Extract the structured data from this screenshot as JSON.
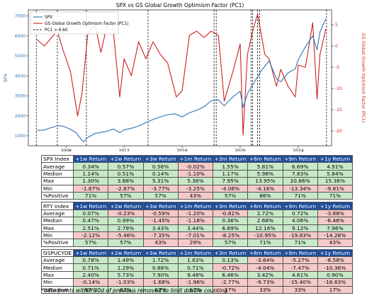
{
  "chart_data": {
    "type": "line",
    "title": "SPX vs GS Global Growth Optimism Factor (PC1)",
    "xlabel": "",
    "ylabel_left": "SPX",
    "ylabel_right": "GS Global Growth Optimism Factor (PC1)",
    "x_ticks": [
      "2008",
      "2012",
      "2016",
      "2020",
      "2024"
    ],
    "y_left_ticks": [
      1000,
      2000,
      3000,
      4000,
      5000,
      6000,
      7000
    ],
    "y_left_range": [
      500,
      7300
    ],
    "y_right_ticks": [
      -20,
      -15,
      -10,
      -5,
      0,
      5
    ],
    "y_right_range": [
      -23.5,
      8.5
    ],
    "x_range": [
      2005.4,
      2026.3
    ],
    "legend_position": "top-left",
    "legend": [
      "SPX",
      "GS Global Growth Optimism Factor (PC1)",
      "PC1 > 6.60"
    ],
    "series": [
      {
        "name": "SPX",
        "axis": "left",
        "color": "#2f74b5",
        "x": [
          2006.0,
          2006.5,
          2007.0,
          2007.5,
          2007.8,
          2008.3,
          2008.7,
          2009.0,
          2009.2,
          2009.5,
          2010.0,
          2010.4,
          2010.8,
          2011.3,
          2011.7,
          2012.0,
          2012.5,
          2013.0,
          2013.5,
          2014.0,
          2014.5,
          2015.0,
          2015.5,
          2016.0,
          2016.5,
          2017.0,
          2017.5,
          2018.0,
          2018.5,
          2018.9,
          2019.5,
          2020.0,
          2020.2,
          2020.5,
          2020.9,
          2021.5,
          2022.0,
          2022.5,
          2022.8,
          2023.3,
          2023.8,
          2024.0,
          2024.5,
          2025.0,
          2025.3,
          2025.5,
          2025.9
        ],
        "y": [
          1270,
          1290,
          1420,
          1510,
          1480,
          1330,
          1150,
          850,
          700,
          920,
          1120,
          1170,
          1230,
          1340,
          1160,
          1300,
          1380,
          1490,
          1660,
          1820,
          1950,
          2060,
          2100,
          1950,
          2150,
          2280,
          2450,
          2750,
          2800,
          2500,
          2950,
          3230,
          2420,
          3100,
          3600,
          4300,
          4750,
          3850,
          3700,
          4150,
          4350,
          4800,
          5450,
          6000,
          5300,
          6200,
          6850
        ]
      },
      {
        "name": "GS Global Growth Optimism Factor (PC1)",
        "axis": "right",
        "color": "#cc2020",
        "x": [
          2006.0,
          2006.5,
          2007.0,
          2007.4,
          2007.8,
          2008.3,
          2008.8,
          2009.1,
          2009.5,
          2010.0,
          2010.4,
          2010.8,
          2011.2,
          2011.7,
          2012.0,
          2012.5,
          2013.0,
          2013.5,
          2014.0,
          2014.5,
          2015.0,
          2015.6,
          2016.0,
          2016.5,
          2017.0,
          2017.5,
          2018.0,
          2018.5,
          2018.9,
          2019.5,
          2020.0,
          2020.2,
          2020.5,
          2020.9,
          2021.2,
          2021.7,
          2022.0,
          2022.5,
          2022.8,
          2023.3,
          2023.8,
          2024.0,
          2024.5,
          2025.0,
          2025.3,
          2025.5,
          2025.9
        ],
        "y": [
          1.5,
          0.0,
          2.0,
          3.5,
          -1.0,
          -6.0,
          -16.5,
          -11.0,
          3.0,
          5.0,
          -1.5,
          4.5,
          5.5,
          -12.0,
          -3.0,
          -7.0,
          1.0,
          -3.0,
          1.0,
          -2.0,
          -4.0,
          -12.0,
          -10.5,
          2.5,
          3.5,
          2.0,
          3.5,
          2.5,
          -13.0,
          -6.0,
          0.5,
          -21.0,
          -2.0,
          4.0,
          7.5,
          -2.0,
          -3.0,
          -9.5,
          -5.5,
          -9.5,
          -12.0,
          -4.5,
          -5.0,
          5.5,
          -12.5,
          -2.0,
          4.0
        ]
      },
      {
        "name": "PC1 > 6.60",
        "type": "vlines",
        "style": "dashed",
        "color": "#000000",
        "x": [
          2005.95,
          2007.4,
          2009.4,
          2013.65,
          2018.2,
          2018.35,
          2020.75,
          2020.85,
          2021.2,
          2021.35,
          2025.95
        ]
      }
    ]
  },
  "tables": [
    {
      "index_label": "SPX Index",
      "columns": [
        "+1w Return",
        "+2w Return",
        "+3w Return",
        "+1m Return",
        "+3m Return",
        "+6m Return",
        "+9m Return",
        "+1y Return"
      ],
      "rows": [
        {
          "label": "Average",
          "values": [
            "0.34%",
            "0.57%",
            "0.56%",
            "-0.02%",
            "1.55%",
            "5.81%",
            "6.69%",
            "4.91%"
          ]
        },
        {
          "label": "Median",
          "values": [
            "1.14%",
            "0.51%",
            "0.14%",
            "-1.10%",
            "1.17%",
            "5.98%",
            "7.83%",
            "5.84%"
          ]
        },
        {
          "label": "Max",
          "values": [
            "1.30%",
            "3.88%",
            "5.31%",
            "5.36%",
            "7.95%",
            "13.95%",
            "20.86%",
            "15.36%"
          ]
        },
        {
          "label": "Min",
          "values": [
            "-1.87%",
            "-2.87%",
            "-3.77%",
            "-3.25%",
            "-4.06%",
            "-4.16%",
            "-13.34%",
            "-9.81%"
          ]
        },
        {
          "label": "%Positive",
          "values": [
            "71%",
            "57%",
            "57%",
            "43%",
            "57%",
            "86%",
            "71%",
            "71%"
          ]
        }
      ]
    },
    {
      "index_label": "RTY Index",
      "columns": [
        "+1w Return",
        "+2w Return",
        "+3w Return",
        "+1m Return",
        "+3m Return",
        "+6m Return",
        "+9m Return",
        "+1y Return"
      ],
      "rows": [
        {
          "label": "Average",
          "values": [
            "0.07%",
            "-0.23%",
            "-0.59%",
            "-1.20%",
            "-0.81%",
            "2.72%",
            "0.72%",
            "-3.88%"
          ]
        },
        {
          "label": "Median",
          "values": [
            "0.47%",
            "0.99%",
            "-1.45%",
            "-1.18%",
            "0.36%",
            "2.68%",
            "4.06%",
            "-6.46%"
          ]
        },
        {
          "label": "Max",
          "values": [
            "2.51%",
            "2.79%",
            "3.43%",
            "3.44%",
            "6.89%",
            "12.16%",
            "9.12%",
            "7.96%"
          ]
        },
        {
          "label": "Min",
          "values": [
            "-2.12%",
            "-5.46%",
            "-7.35%",
            "-7.01%",
            "-8.25%",
            "-10.95%",
            "-19.83%",
            "-14.28%"
          ]
        },
        {
          "label": "%Positive",
          "values": [
            "57%",
            "57%",
            "43%",
            "29%",
            "57%",
            "71%",
            "71%",
            "43%"
          ]
        }
      ]
    },
    {
      "index_label": "GSPUCYDE",
      "columns": [
        "+1w Return",
        "+2w Return",
        "+3w Return",
        "+1m Return",
        "+3m Return",
        "+6m Return",
        "+9m Return",
        "+1y Return"
      ],
      "rows": [
        {
          "label": "Average",
          "values": [
            "0.78%",
            "1.49%",
            "1.72%",
            "1.63%",
            "0.13%",
            "-3.64%",
            "-5.27%",
            "-8.58%"
          ]
        },
        {
          "label": "Median",
          "values": [
            "0.71%",
            "1.29%",
            "0.88%",
            "0.71%",
            "-0.72%",
            "-4.04%",
            "-7.47%",
            "-10.36%"
          ]
        },
        {
          "label": "Max",
          "values": [
            "2.40%",
            "5.73%",
            "7.90%",
            "9.48%",
            "6.46%",
            "3.42%",
            "4.61%",
            "0.90%"
          ]
        },
        {
          "label": "Min",
          "values": [
            "-0.14%",
            "-1.03%",
            "-1.68%",
            "-1.96%",
            "-2.77%",
            "-9.73%",
            "-15.40%",
            "-16.63%"
          ]
        },
        {
          "label": "%Positive",
          "values": [
            "67%",
            "83%",
            "67%",
            "67%",
            "17%",
            "33%",
            "33%",
            "17%"
          ]
        }
      ]
    }
  ],
  "footnote": "*data points within 30d of previous removed to limit double counting"
}
